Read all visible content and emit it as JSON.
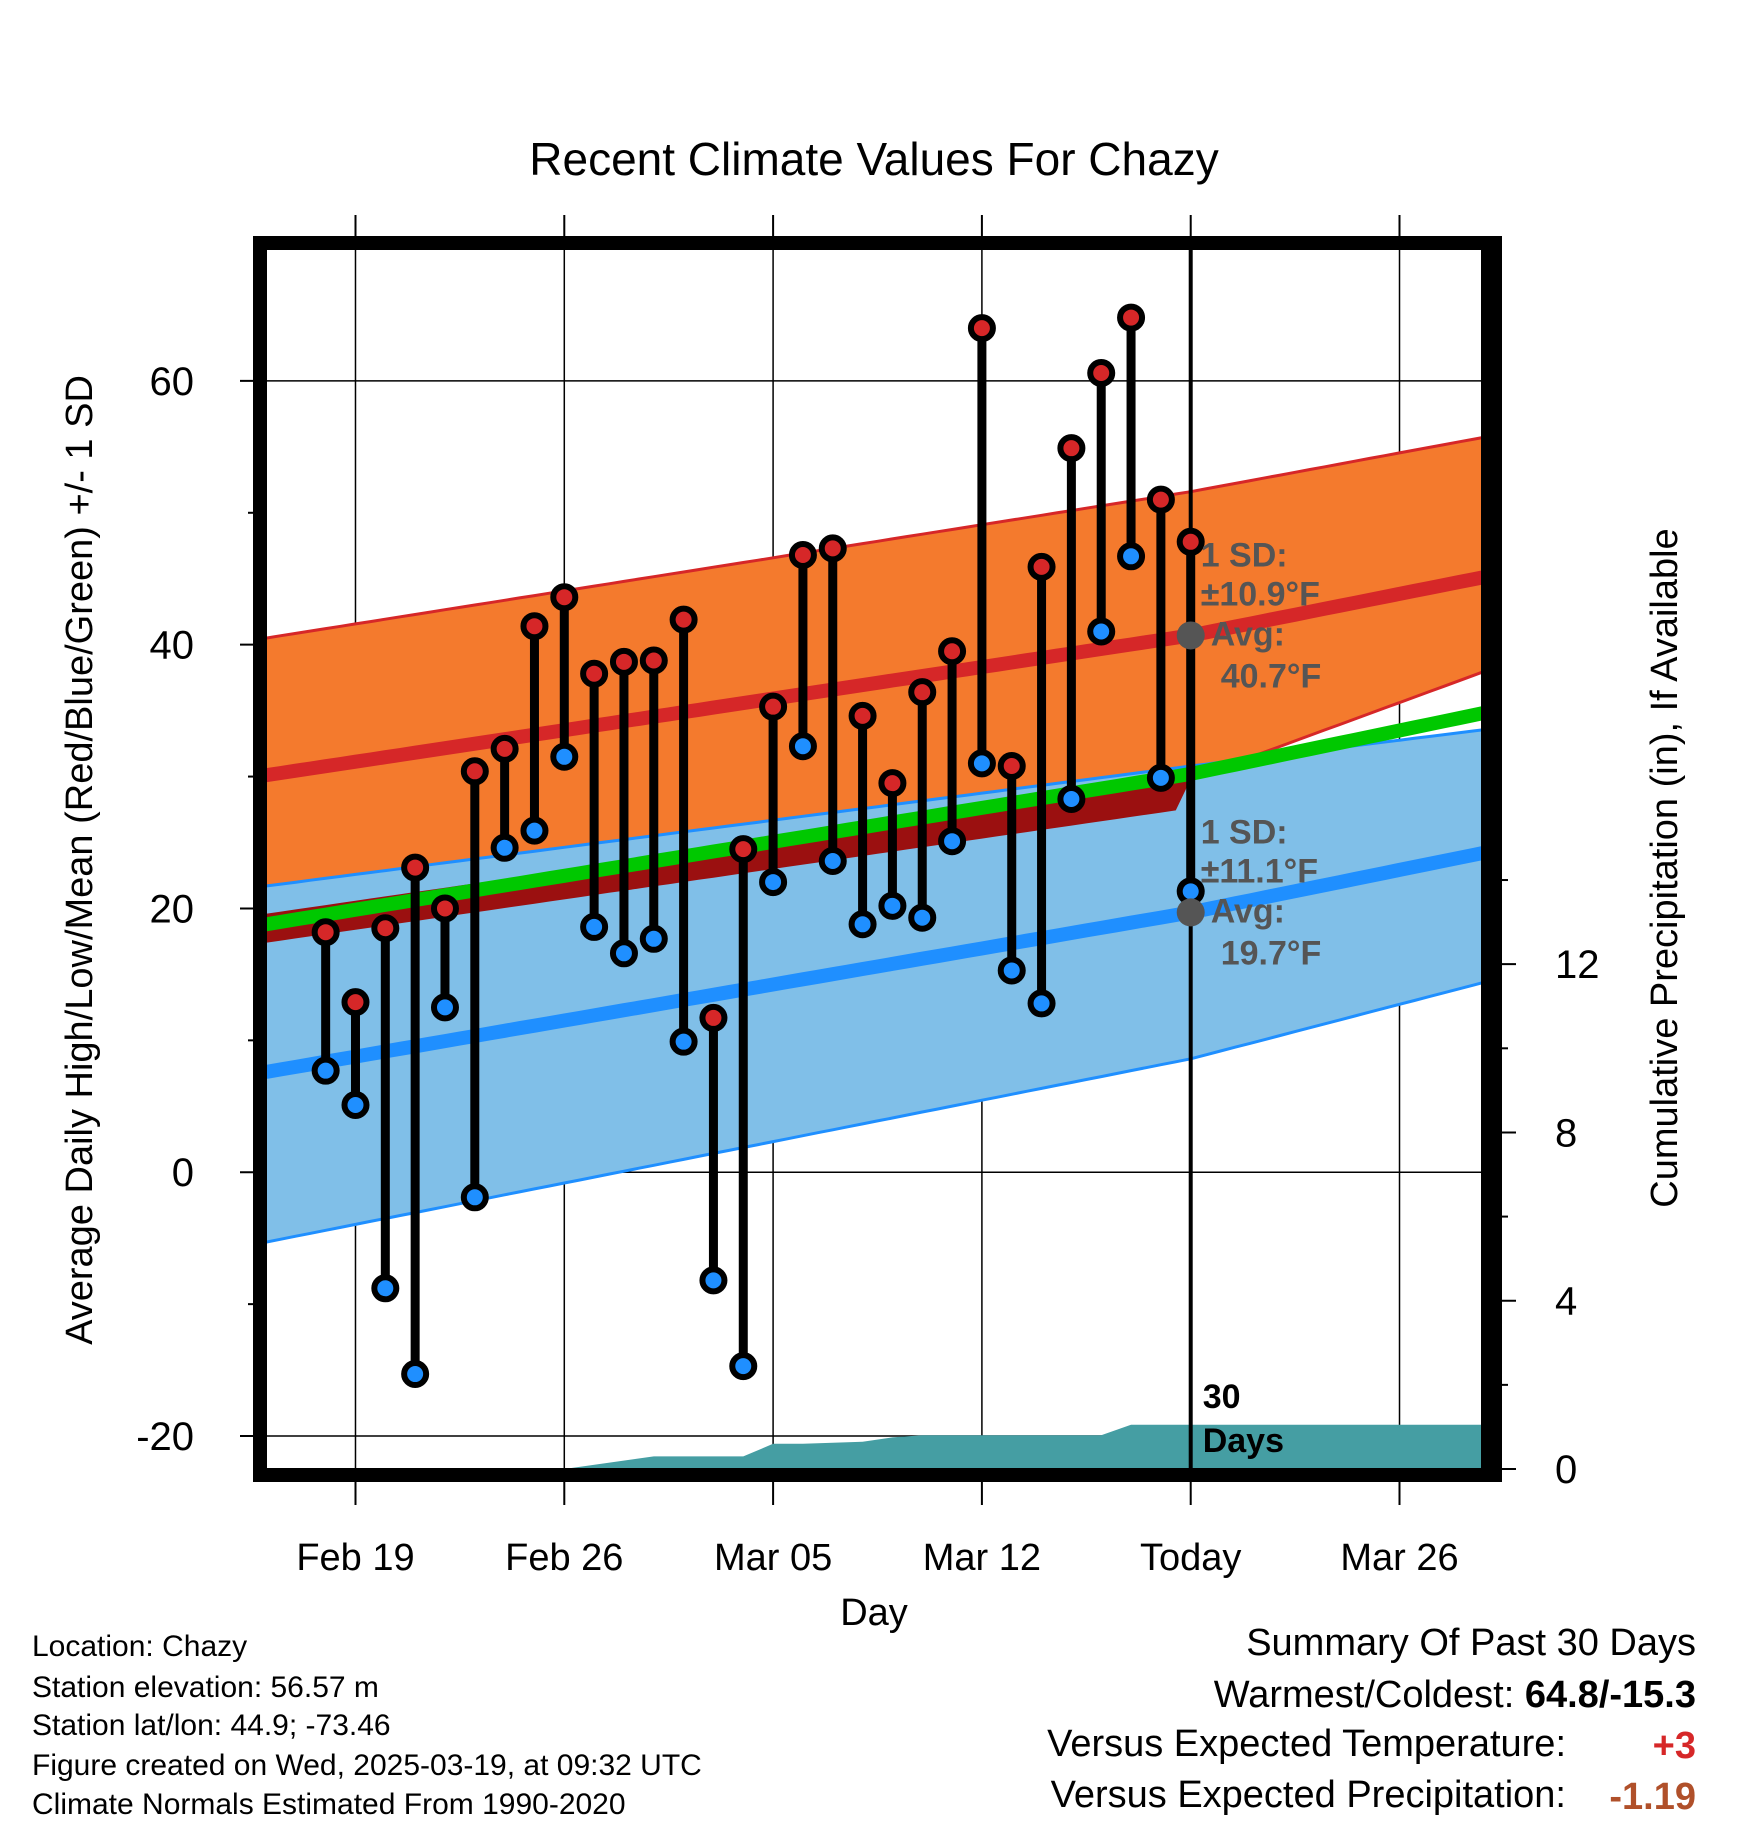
{
  "chart_data": {
    "type": "line",
    "title": "Recent Climate Values For Chazy",
    "xlabel": "Day",
    "ylabel": "Average Daily High/Low/Mean (Red/Blue/Green) +/- 1 SD",
    "y2label": "Cumulative Precipitation (in), If Available",
    "xlim": [
      "2025-02-16",
      "2025-03-29"
    ],
    "ylim": [
      -22.5,
      70
    ],
    "y2lim": [
      0,
      29
    ],
    "x_ticks": [
      "Feb 19",
      "Feb 26",
      "Mar 05",
      "Mar 12",
      "Today",
      "Mar 26"
    ],
    "x_tick_dates": [
      "2025-02-19",
      "2025-02-26",
      "2025-03-05",
      "2025-03-12",
      "2025-03-19",
      "2025-03-26"
    ],
    "y_ticks": [
      60,
      40,
      20,
      0,
      -20
    ],
    "y2_ticks": [
      12,
      8,
      4,
      0
    ],
    "grid": true,
    "today": "2025-03-19",
    "today_label": "30\nDays",
    "colors": {
      "high_band": "#f47a2d",
      "high_line": "#d62728",
      "low_band": "#80bfe8",
      "low_line": "#1f8fff",
      "mean_line": "#00c800",
      "overlap": "#9b1010",
      "precip": "#459ea3",
      "high_dot": "#d62728",
      "low_dot": "#1f8fff",
      "annotation": "#555555"
    },
    "normals": {
      "dates": [
        "2025-02-16",
        "2025-03-19",
        "2025-03-29"
      ],
      "high_avg": [
        30.1,
        40.7,
        45.2
      ],
      "high_upper": [
        40.5,
        51.6,
        55.8
      ],
      "high_lower": [
        19.6,
        29.8,
        38.1
      ],
      "low_avg": [
        7.6,
        19.7,
        24.3
      ],
      "low_upper": [
        21.7,
        30.8,
        33.6
      ],
      "low_lower": [
        -5.3,
        8.6,
        14.5
      ],
      "mean_avg": [
        18.8,
        30.2,
        34.9
      ]
    },
    "series": [
      {
        "name": "High",
        "x": [
          "2025-02-18",
          "2025-02-19",
          "2025-02-20",
          "2025-02-21",
          "2025-02-22",
          "2025-02-23",
          "2025-02-24",
          "2025-02-25",
          "2025-02-26",
          "2025-02-27",
          "2025-02-28",
          "2025-03-01",
          "2025-03-02",
          "2025-03-03",
          "2025-03-04",
          "2025-03-05",
          "2025-03-06",
          "2025-03-07",
          "2025-03-08",
          "2025-03-09",
          "2025-03-10",
          "2025-03-11",
          "2025-03-12",
          "2025-03-13",
          "2025-03-14",
          "2025-03-15",
          "2025-03-16",
          "2025-03-17",
          "2025-03-18",
          "2025-03-19"
        ],
        "values": [
          18.2,
          12.9,
          18.5,
          23.1,
          20.0,
          30.4,
          32.1,
          41.4,
          43.6,
          37.8,
          38.7,
          38.8,
          41.9,
          11.7,
          24.5,
          35.3,
          46.8,
          47.3,
          34.6,
          29.5,
          36.4,
          39.5,
          64.0,
          30.8,
          45.9,
          54.9,
          60.6,
          64.8,
          51.0,
          47.8
        ]
      },
      {
        "name": "Low",
        "x": [
          "2025-02-18",
          "2025-02-19",
          "2025-02-20",
          "2025-02-21",
          "2025-02-22",
          "2025-02-23",
          "2025-02-24",
          "2025-02-25",
          "2025-02-26",
          "2025-02-27",
          "2025-02-28",
          "2025-03-01",
          "2025-03-02",
          "2025-03-03",
          "2025-03-04",
          "2025-03-05",
          "2025-03-06",
          "2025-03-07",
          "2025-03-08",
          "2025-03-09",
          "2025-03-10",
          "2025-03-11",
          "2025-03-12",
          "2025-03-13",
          "2025-03-14",
          "2025-03-15",
          "2025-03-16",
          "2025-03-17",
          "2025-03-18",
          "2025-03-19"
        ],
        "values": [
          7.7,
          5.1,
          -8.8,
          -15.3,
          12.5,
          -1.9,
          24.6,
          25.9,
          31.5,
          18.6,
          16.6,
          17.7,
          9.9,
          -8.2,
          -14.7,
          22.0,
          32.3,
          23.6,
          18.8,
          20.2,
          19.3,
          25.1,
          31.0,
          15.3,
          12.8,
          28.3,
          41.0,
          46.7,
          29.9,
          21.3
        ]
      },
      {
        "name": "Cumulative Precipitation",
        "axis": "y2",
        "x": [
          "2025-02-26",
          "2025-03-01",
          "2025-03-03",
          "2025-03-04",
          "2025-03-05",
          "2025-03-06",
          "2025-03-08",
          "2025-03-09",
          "2025-03-10",
          "2025-03-11",
          "2025-03-16",
          "2025-03-17",
          "2025-03-29"
        ],
        "values": [
          0.0,
          0.3,
          0.3,
          0.3,
          0.6,
          0.6,
          0.65,
          0.75,
          0.8,
          0.8,
          0.8,
          1.05,
          1.05
        ]
      }
    ],
    "annotations": {
      "high": [
        "1 SD:",
        "±10.9°F",
        "Avg:",
        "40.7°F"
      ],
      "low": [
        "1 SD:",
        "±11.1°F",
        "Avg:",
        "19.7°F"
      ]
    }
  },
  "info": {
    "location": "Location: Chazy",
    "elevation": "Station elevation: 56.57 m",
    "latlon": "Station lat/lon: 44.9; -73.46",
    "created": "Figure created on Wed, 2025-03-19, at 09:32 UTC",
    "normals": "Climate Normals Estimated From 1990-2020"
  },
  "summary": {
    "title": "Summary Of Past 30 Days",
    "warm_cold_label": "Warmest/Coldest:",
    "warm_cold_value": "64.8/-15.3",
    "temp_label": "Versus Expected Temperature:",
    "temp_value": "+3",
    "precip_label": "Versus Expected Precipitation:",
    "precip_value": "-1.19"
  }
}
